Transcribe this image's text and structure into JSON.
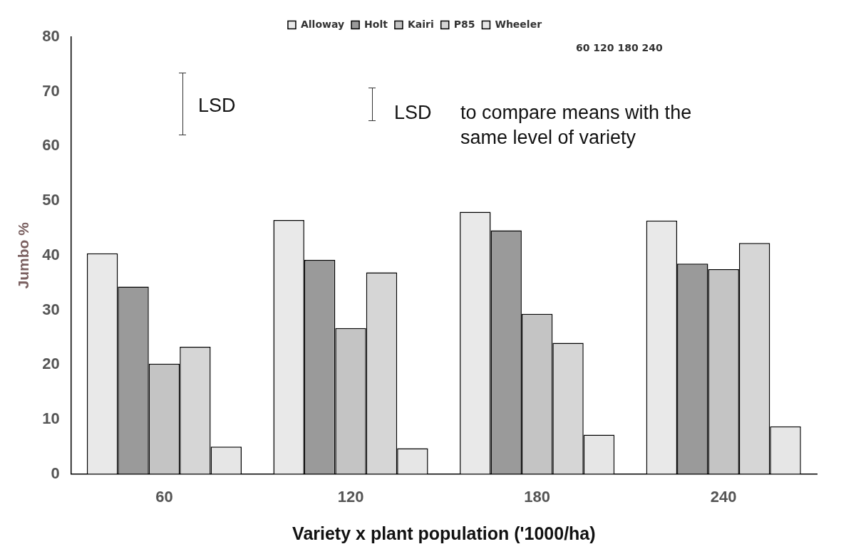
{
  "chart_data": {
    "type": "bar",
    "xlabel": "Variety x plant population ('1000/ha)",
    "ylabel": "Jumbo %",
    "categories": [
      "60",
      "120",
      "180",
      "240"
    ],
    "series": [
      {
        "name": "Alloway",
        "color": "#e9e9e9",
        "values": [
          40.4,
          46.5,
          48,
          46.4
        ]
      },
      {
        "name": "Holt",
        "color": "#9a9a9a",
        "values": [
          34.3,
          39.2,
          44.6,
          38.5
        ]
      },
      {
        "name": "Kairi",
        "color": "#c4c4c4",
        "values": [
          20.2,
          26.7,
          29.3,
          37.5
        ]
      },
      {
        "name": "P85",
        "color": "#d6d6d6",
        "values": [
          23.3,
          36.9,
          24,
          42.3
        ]
      },
      {
        "name": "Wheeler",
        "color": "#e6e6e6",
        "values": [
          5,
          4.7,
          7.2,
          8.7
        ]
      }
    ],
    "ylim": [
      0,
      80
    ],
    "yticks": [
      0,
      10,
      20,
      30,
      40,
      50,
      60,
      70,
      80
    ],
    "grid": false,
    "legend": "top",
    "annotations": [
      "LSD",
      "LSD",
      "to compare means with the same level of variety",
      "60 120 180 240"
    ]
  }
}
